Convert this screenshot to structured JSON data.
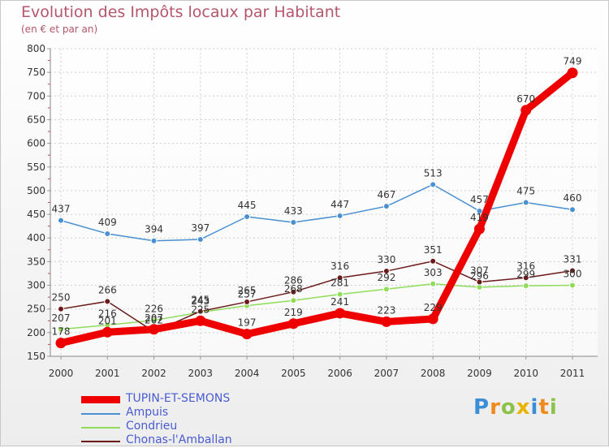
{
  "chart_data": {
    "type": "line",
    "title": "Evolution des Impôts locaux par Habitant",
    "subtitle": "(en € et par an)",
    "xlabel": "",
    "ylabel": "",
    "ylim": [
      150,
      800
    ],
    "yticks": [
      150,
      200,
      250,
      300,
      350,
      400,
      450,
      500,
      550,
      600,
      650,
      700,
      750,
      800
    ],
    "categories": [
      "2000",
      "2001",
      "2002",
      "2003",
      "2004",
      "2005",
      "2006",
      "2007",
      "2008",
      "2009",
      "2010",
      "2011"
    ],
    "series": [
      {
        "name": "TUPIN-ET-SEMONS",
        "color": "#ee0000",
        "values": [
          178,
          201,
          207,
          225,
          197,
          219,
          241,
          223,
          229,
          419,
          670,
          749
        ]
      },
      {
        "name": "Ampuis",
        "color": "#4a8fd0",
        "values": [
          437,
          409,
          394,
          397,
          445,
          433,
          447,
          467,
          513,
          457,
          475,
          460
        ]
      },
      {
        "name": "Condrieu",
        "color": "#8fdc5a",
        "values": [
          207,
          216,
          226,
          243,
          257,
          268,
          281,
          292,
          303,
          296,
          299,
          300
        ]
      },
      {
        "name": "Chonas-l'Amballan",
        "color": "#6b1a1a",
        "values": [
          250,
          266,
          202,
          245,
          265,
          286,
          316,
          330,
          351,
          307,
          316,
          331
        ]
      }
    ]
  },
  "logo": {
    "text": "Proxiti"
  }
}
